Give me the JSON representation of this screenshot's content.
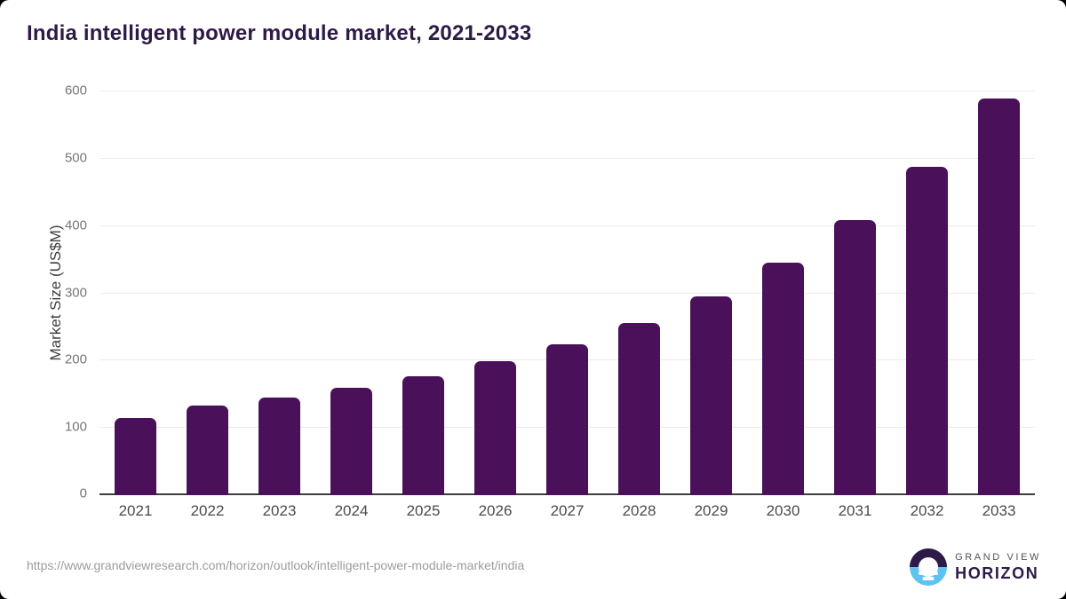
{
  "header": {
    "title": "India intelligent power module market, 2021-2033"
  },
  "chart_data": {
    "type": "bar",
    "title": "India intelligent power module market, 2021-2033",
    "categories": [
      "2021",
      "2022",
      "2023",
      "2024",
      "2025",
      "2026",
      "2027",
      "2028",
      "2029",
      "2030",
      "2031",
      "2032",
      "2033"
    ],
    "values": [
      115,
      133,
      145,
      159,
      177,
      199,
      224,
      256,
      296,
      345,
      409,
      488,
      590
    ],
    "xlabel": "",
    "ylabel": "Market Size (US$M)",
    "ylim": [
      0,
      600
    ],
    "yticks": [
      0,
      100,
      200,
      300,
      400,
      500,
      600
    ],
    "grid": "horizontal-only",
    "legend": "none",
    "bar_color": "#4a1059",
    "gridline_color": "#ececec",
    "axis_line_color": "#3f3f3f"
  },
  "footer": {
    "source_url": "https://www.grandviewresearch.com/horizon/outlook/intelligent-power-module-market/india",
    "logo": {
      "line1": "GRAND VIEW",
      "line2": "HORIZON",
      "circle_top_color": "#2e1a47",
      "circle_bottom_color": "#5ec3f0"
    }
  }
}
